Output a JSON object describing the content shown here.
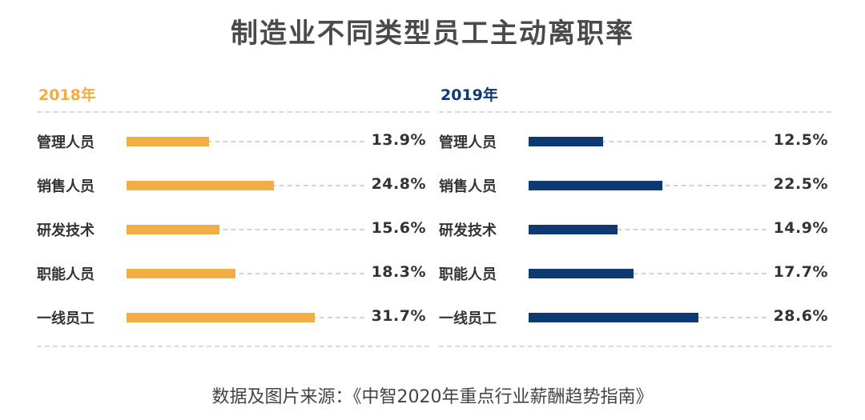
{
  "title": "制造业不同类型员工主动离职率",
  "source": "数据及图片来源：《中智2020年重点行业薪酬趋势指南》",
  "chart_data": [
    {
      "type": "bar",
      "title": "2018年",
      "color": "#f2ae45",
      "categories": [
        "管理人员",
        "销售人员",
        "研发技术",
        "职能人员",
        "一线员工"
      ],
      "values": [
        13.9,
        24.8,
        15.6,
        18.3,
        31.7
      ],
      "value_labels": [
        "13.9%",
        "24.8%",
        "15.6%",
        "18.3%",
        "31.7%"
      ],
      "unit": "%",
      "xlim": [
        0,
        40
      ]
    },
    {
      "type": "bar",
      "title": "2019年",
      "color": "#0d3a72",
      "categories": [
        "管理人员",
        "销售人员",
        "研发技术",
        "职能人员",
        "一线员工"
      ],
      "values": [
        12.5,
        22.5,
        14.9,
        17.7,
        28.6
      ],
      "value_labels": [
        "12.5%",
        "22.5%",
        "14.9%",
        "17.7%",
        "28.6%"
      ],
      "unit": "%",
      "xlim": [
        0,
        40
      ]
    }
  ]
}
